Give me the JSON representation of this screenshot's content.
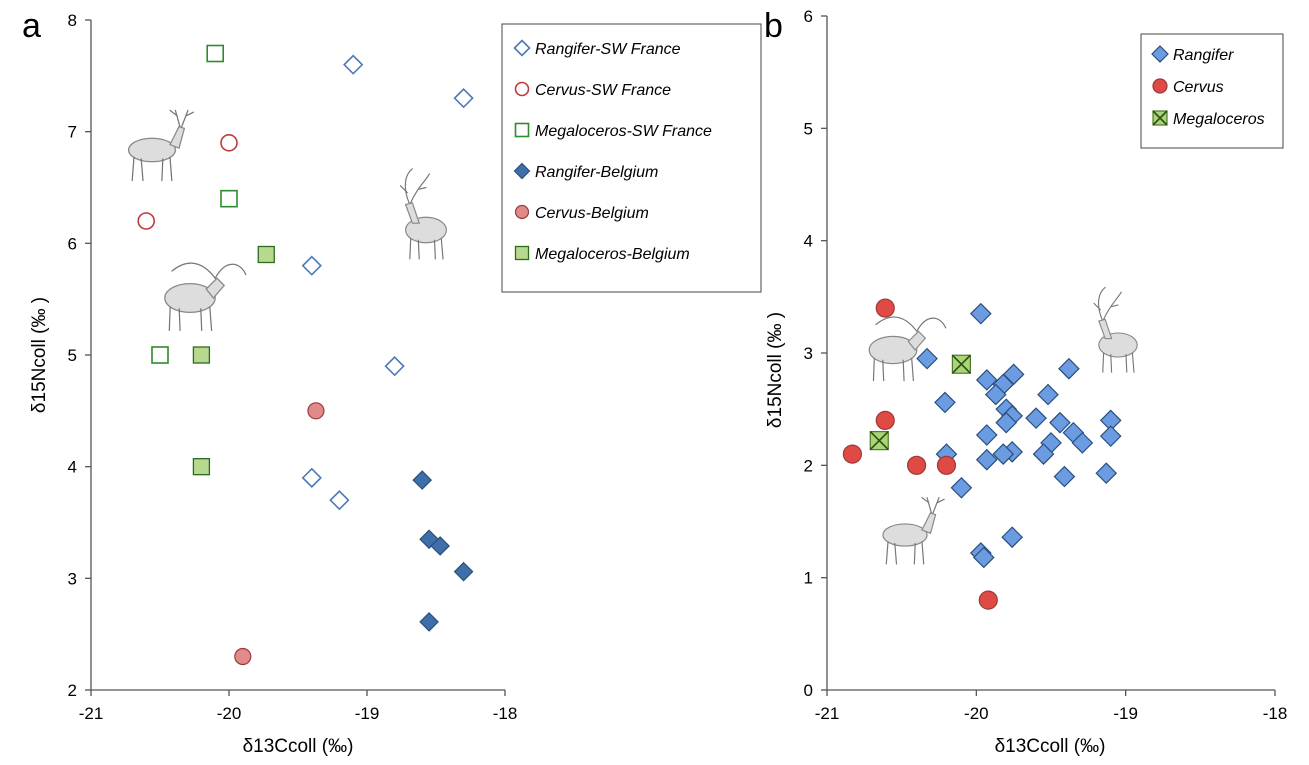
{
  "colors": {
    "sw_reindeer": "#4a7ab5",
    "sw_cervus": "#c0393b",
    "sw_mega": "#2e8b2e",
    "be_reindeer_fill": "#3e6fa8",
    "be_cervus_fill": "#e08a8a",
    "be_mega_fill": "#b7d88f",
    "b_rangifer_fill": "#6b9be0",
    "b_cervus_fill": "#e04a44",
    "b_mega_fill": "#a9d574"
  },
  "chart_data": [
    {
      "panel": "a",
      "type": "scatter",
      "xlabel": "δ13Ccoll (‰)",
      "ylabel": "δ15Ncoll (‰ )",
      "xlim": [
        -21,
        -18
      ],
      "ylim": [
        2,
        8
      ],
      "xticks": [
        "-21",
        "-20",
        "-19",
        "-18"
      ],
      "yticks": [
        "2",
        "3",
        "4",
        "5",
        "6",
        "7",
        "8"
      ],
      "grid": false,
      "legend": "top-right",
      "series": [
        {
          "name": "Rangifer-SW France",
          "marker": "diamond-open",
          "color": "#4a7ab5",
          "points": [
            [
              -19.1,
              7.6
            ],
            [
              -18.3,
              7.3
            ],
            [
              -19.4,
              5.8
            ],
            [
              -18.8,
              4.9
            ],
            [
              -19.4,
              3.9
            ],
            [
              -19.2,
              3.7
            ]
          ]
        },
        {
          "name": "Cervus-SW France",
          "marker": "circle-open",
          "color": "#c0393b",
          "points": [
            [
              -20.0,
              6.9
            ],
            [
              -20.6,
              6.2
            ]
          ]
        },
        {
          "name": "Megaloceros-SW France",
          "marker": "square-open",
          "color": "#2e8b2e",
          "points": [
            [
              -20.1,
              7.7
            ],
            [
              -20.0,
              6.4
            ],
            [
              -20.5,
              5.0
            ]
          ]
        },
        {
          "name": "Rangifer-Belgium",
          "marker": "diamond-filled",
          "color": "#3e6fa8",
          "points": [
            [
              -18.6,
              3.88
            ],
            [
              -18.55,
              3.35
            ],
            [
              -18.47,
              3.29
            ],
            [
              -18.3,
              3.06
            ],
            [
              -18.55,
              2.61
            ]
          ]
        },
        {
          "name": "Cervus-Belgium",
          "marker": "circle-filled",
          "color": "#e08a8a",
          "points": [
            [
              -19.37,
              4.5
            ],
            [
              -19.9,
              2.3
            ]
          ]
        },
        {
          "name": "Megaloceros-Belgium",
          "marker": "square-filled",
          "color": "#b7d88f",
          "points": [
            [
              -19.73,
              5.9
            ],
            [
              -20.2,
              5.0
            ],
            [
              -20.2,
              4.0
            ]
          ]
        }
      ]
    },
    {
      "panel": "b",
      "type": "scatter",
      "xlabel": "δ13Ccoll (‰)",
      "ylabel": "δ15Ncoll (‰ )",
      "xlim": [
        -21,
        -18
      ],
      "ylim": [
        0,
        6
      ],
      "xticks": [
        "-21",
        "-20",
        "-19",
        "-18"
      ],
      "yticks": [
        "0",
        "1",
        "2",
        "3",
        "4",
        "5",
        "6"
      ],
      "grid": false,
      "legend": "top-right",
      "series": [
        {
          "name": "Rangifer",
          "marker": "diamond-filled",
          "color": "#6b9be0",
          "points": [
            [
              -19.97,
              3.35
            ],
            [
              -20.33,
              2.95
            ],
            [
              -19.38,
              2.86
            ],
            [
              -19.75,
              2.81
            ],
            [
              -19.93,
              2.76
            ],
            [
              -19.82,
              2.72
            ],
            [
              -19.87,
              2.63
            ],
            [
              -19.52,
              2.63
            ],
            [
              -20.21,
              2.56
            ],
            [
              -19.8,
              2.5
            ],
            [
              -19.76,
              2.44
            ],
            [
              -19.6,
              2.42
            ],
            [
              -19.1,
              2.4
            ],
            [
              -19.44,
              2.38
            ],
            [
              -19.8,
              2.38
            ],
            [
              -19.35,
              2.29
            ],
            [
              -19.93,
              2.27
            ],
            [
              -19.1,
              2.26
            ],
            [
              -19.5,
              2.2
            ],
            [
              -19.29,
              2.2
            ],
            [
              -19.76,
              2.12
            ],
            [
              -19.82,
              2.1
            ],
            [
              -20.2,
              2.1
            ],
            [
              -19.55,
              2.1
            ],
            [
              -19.93,
              2.05
            ],
            [
              -19.41,
              1.9
            ],
            [
              -19.13,
              1.93
            ],
            [
              -20.1,
              1.8
            ],
            [
              -19.76,
              1.36
            ],
            [
              -19.97,
              1.22
            ],
            [
              -19.95,
              1.18
            ]
          ]
        },
        {
          "name": "Cervus",
          "marker": "circle-filled",
          "color": "#e04a44",
          "points": [
            [
              -20.61,
              3.4
            ],
            [
              -20.61,
              2.4
            ],
            [
              -20.83,
              2.1
            ],
            [
              -20.4,
              2.0
            ],
            [
              -20.2,
              2.0
            ],
            [
              -19.92,
              0.8
            ]
          ]
        },
        {
          "name": "Megaloceros",
          "marker": "square-x",
          "color": "#a9d574",
          "points": [
            [
              -20.1,
              2.9
            ],
            [
              -20.65,
              2.22
            ]
          ]
        }
      ]
    }
  ]
}
